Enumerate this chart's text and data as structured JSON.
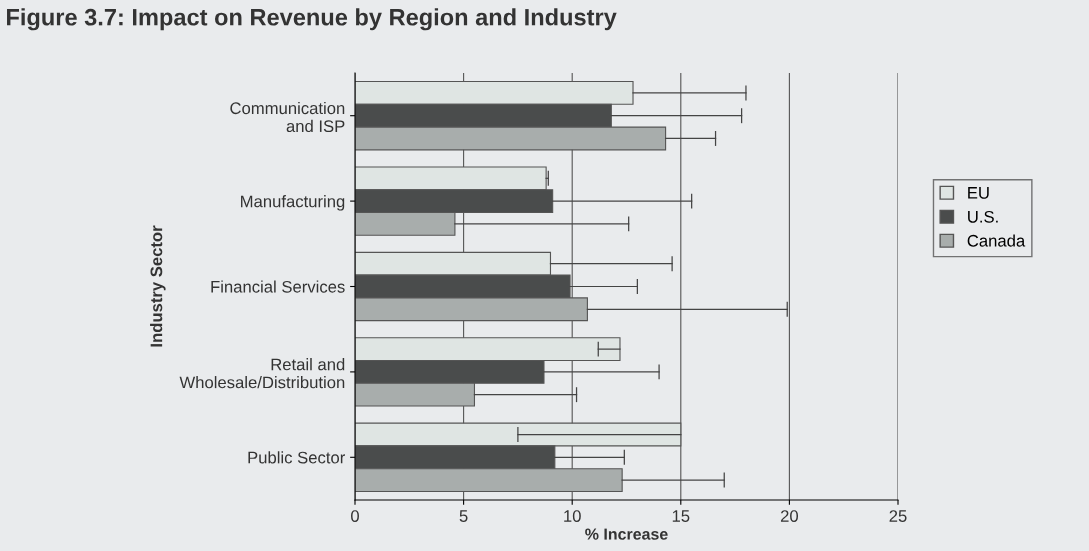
{
  "chart_data": {
    "type": "bar",
    "orientation": "horizontal",
    "title": "Figure 3.7: Impact on Revenue by Region and Industry",
    "xlabel": "% Increase",
    "ylabel": "Industry Sector",
    "categories": [
      "Communication\nand ISP",
      "Manufacturing",
      "Financial Services",
      "Retail and\nWholesale/Distribution",
      "Public Sector"
    ],
    "series": [
      {
        "name": "EU",
        "color": "#dfe5e3",
        "values": [
          12.8,
          8.8,
          9.0,
          12.2,
          15.0
        ],
        "errors": [
          [
            12.8,
            18.0
          ],
          [
            8.8,
            8.9
          ],
          [
            9.0,
            14.6
          ],
          [
            11.2,
            12.2
          ],
          [
            7.5,
            15.0
          ]
        ]
      },
      {
        "name": "U.S.",
        "color": "#4a4c4c",
        "values": [
          11.8,
          9.1,
          9.9,
          8.7,
          9.2
        ],
        "errors": [
          [
            11.8,
            17.8
          ],
          [
            9.1,
            15.5
          ],
          [
            9.9,
            13.0
          ],
          [
            8.7,
            14.0
          ],
          [
            9.2,
            12.4
          ]
        ]
      },
      {
        "name": "Canada",
        "color": "#a8adac",
        "values": [
          14.3,
          4.6,
          10.7,
          5.5,
          12.3
        ],
        "errors": [
          [
            14.3,
            16.6
          ],
          [
            4.6,
            12.6
          ],
          [
            10.7,
            19.9
          ],
          [
            5.5,
            10.2
          ],
          [
            12.3,
            17.0
          ]
        ]
      }
    ],
    "xlim": [
      0,
      25
    ],
    "xticks": [
      0,
      5,
      10,
      15,
      20,
      25
    ],
    "grid": "x",
    "legend": "right"
  }
}
